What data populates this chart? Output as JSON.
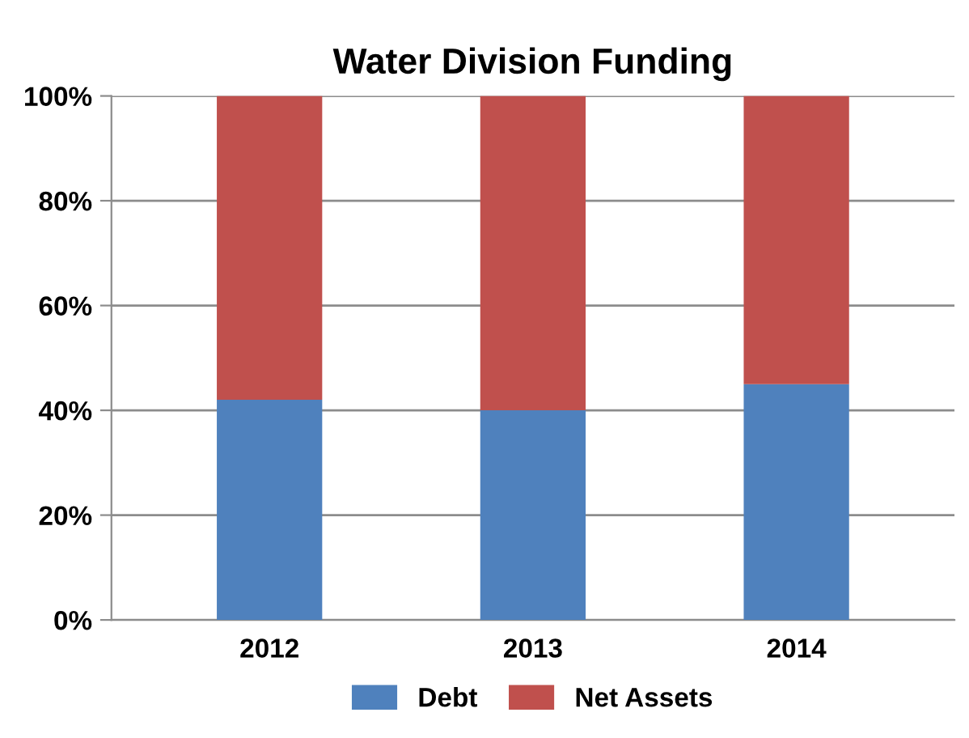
{
  "chart_data": {
    "type": "bar",
    "title": "Water Division Funding",
    "stacked": true,
    "categories": [
      "2012",
      "2013",
      "2014"
    ],
    "series": [
      {
        "name": "Debt",
        "color": "#4f81bd",
        "values": [
          42,
          40,
          45
        ]
      },
      {
        "name": "Net Assets",
        "color": "#c0504d",
        "values": [
          58,
          60,
          55
        ]
      }
    ],
    "ylim": [
      0,
      100
    ],
    "yticks": [
      {
        "value": 0,
        "label": "0%"
      },
      {
        "value": 20,
        "label": "20%"
      },
      {
        "value": 40,
        "label": "40%"
      },
      {
        "value": 60,
        "label": "60%"
      },
      {
        "value": 80,
        "label": "80%"
      },
      {
        "value": 100,
        "label": "100%"
      }
    ],
    "grid": "y",
    "legend": "bottom"
  }
}
